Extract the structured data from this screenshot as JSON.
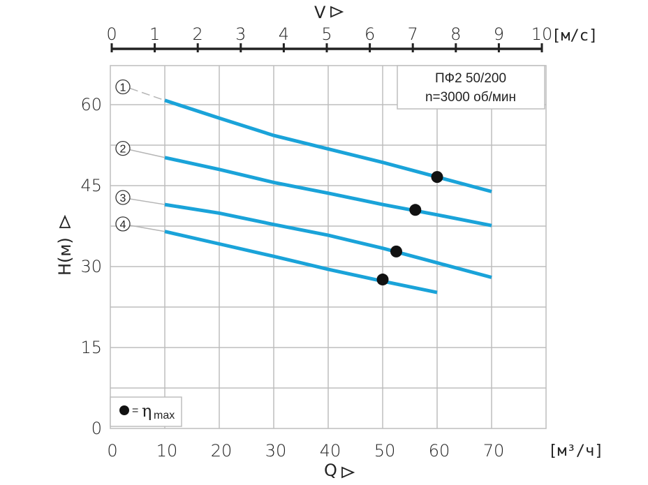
{
  "chart_data": {
    "type": "line",
    "title_box": [
      "ПФ2 50/200",
      "n=3000 об/мин"
    ],
    "x_axis": {
      "label": "Q",
      "units": "[м³/ч]",
      "range": [
        0,
        80
      ],
      "ticks": [
        0,
        10,
        20,
        30,
        40,
        50,
        60,
        70
      ]
    },
    "x2_axis": {
      "label": "V",
      "units": "[м/с]",
      "ticks": [
        0,
        1,
        2,
        3,
        4,
        5,
        6,
        7,
        8,
        9,
        10
      ]
    },
    "y_axis": {
      "label": "H(м)",
      "range": [
        0,
        67
      ],
      "ticks": [
        0,
        15,
        30,
        45,
        60
      ]
    },
    "grid": true,
    "series": [
      {
        "name": "1",
        "color": "#1aa3d9",
        "points": [
          [
            10,
            60.8
          ],
          [
            20,
            57.5
          ],
          [
            30,
            54.3
          ],
          [
            40,
            51.8
          ],
          [
            50,
            49.3
          ],
          [
            60,
            46.6
          ],
          [
            70,
            43.9
          ]
        ],
        "eta_max": [
          60,
          46.6
        ],
        "label_y": 63.3
      },
      {
        "name": "2",
        "color": "#1aa3d9",
        "points": [
          [
            10,
            50.2
          ],
          [
            20,
            48.0
          ],
          [
            30,
            45.6
          ],
          [
            40,
            43.6
          ],
          [
            50,
            41.5
          ],
          [
            60,
            39.6
          ],
          [
            70,
            37.6
          ]
        ],
        "eta_max": [
          56,
          40.5
        ],
        "label_y": 51.9
      },
      {
        "name": "3",
        "color": "#1aa3d9",
        "points": [
          [
            10,
            41.5
          ],
          [
            20,
            39.9
          ],
          [
            30,
            37.8
          ],
          [
            40,
            35.8
          ],
          [
            50,
            33.4
          ],
          [
            60,
            30.7
          ],
          [
            70,
            28.0
          ]
        ],
        "eta_max": [
          52.5,
          32.8
        ],
        "label_y": 42.8
      },
      {
        "name": "4",
        "color": "#1aa3d9",
        "points": [
          [
            10,
            36.5
          ],
          [
            20,
            34.2
          ],
          [
            30,
            31.9
          ],
          [
            40,
            29.5
          ],
          [
            50,
            27.3
          ],
          [
            60,
            25.2
          ]
        ],
        "eta_max": [
          50,
          27.6
        ],
        "label_y": 37.9
      }
    ],
    "legend": {
      "symbol": "●",
      "equals": "=",
      "eta": "η",
      "sub": "max"
    }
  }
}
